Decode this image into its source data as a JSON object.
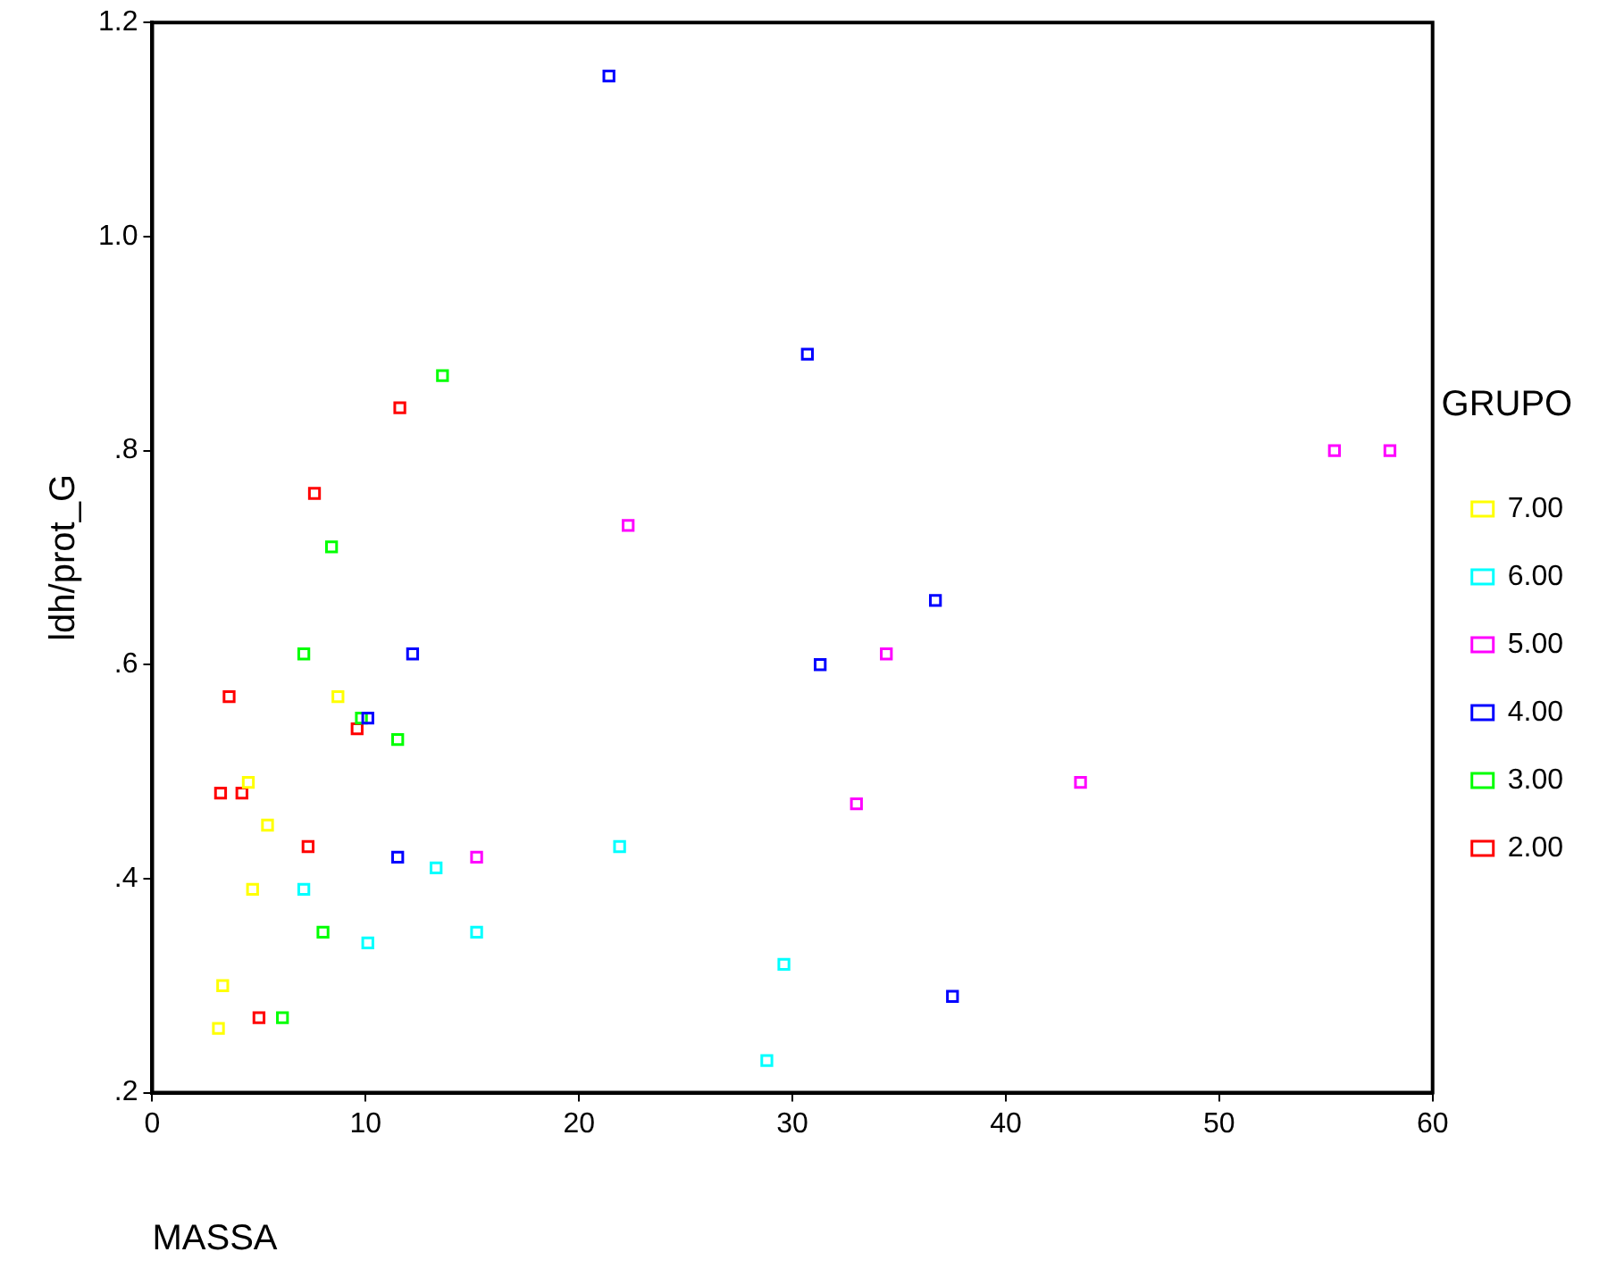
{
  "chart_data": {
    "type": "scatter",
    "xlabel": "MASSA",
    "ylabel": "ldh/prot_G",
    "legend_title": "GRUPO",
    "legend": "right",
    "marker": "square",
    "grid": false,
    "xlim": [
      0,
      60
    ],
    "xticks": [
      0,
      10,
      20,
      30,
      40,
      50,
      60
    ],
    "ylim": [
      0.2,
      1.2
    ],
    "yticks": [
      {
        "value": 0.2,
        "label": ".2"
      },
      {
        "value": 0.4,
        "label": ".4"
      },
      {
        "value": 0.6,
        "label": ".6"
      },
      {
        "value": 0.8,
        "label": ".8"
      },
      {
        "value": 1.0,
        "label": "1.0"
      },
      {
        "value": 1.2,
        "label": "1.2"
      }
    ],
    "series": [
      {
        "name": "7.00",
        "color": "#ffff00",
        "x": [
          8.7,
          4.5,
          5.4,
          4.7,
          3.3,
          3.1
        ],
        "values": [
          0.57,
          0.49,
          0.45,
          0.39,
          0.3,
          0.26
        ]
      },
      {
        "name": "6.00",
        "color": "#00ffff",
        "x": [
          13.3,
          7.1,
          10.1,
          15.2,
          21.9,
          29.6,
          28.8
        ],
        "values": [
          0.41,
          0.39,
          0.34,
          0.35,
          0.43,
          0.32,
          0.23
        ]
      },
      {
        "name": "5.00",
        "color": "#ff00ff",
        "x": [
          15.2,
          22.3,
          34.4,
          33.0,
          43.5,
          55.4,
          58.0
        ],
        "values": [
          0.42,
          0.73,
          0.61,
          0.47,
          0.49,
          0.8,
          0.8
        ]
      },
      {
        "name": "4.00",
        "color": "#0000ff",
        "x": [
          12.2,
          10.1,
          11.5,
          21.4,
          30.7,
          36.7,
          31.3,
          37.5
        ],
        "values": [
          0.61,
          0.55,
          0.42,
          1.15,
          0.89,
          0.66,
          0.6,
          0.29
        ]
      },
      {
        "name": "3.00",
        "color": "#00ff00",
        "x": [
          13.6,
          8.4,
          7.1,
          9.8,
          11.5,
          8.0,
          6.1
        ],
        "values": [
          0.87,
          0.71,
          0.61,
          0.55,
          0.53,
          0.35,
          0.27
        ]
      },
      {
        "name": "2.00",
        "color": "#ff0000",
        "x": [
          11.6,
          7.6,
          3.6,
          9.6,
          3.2,
          4.2,
          7.3,
          5.0
        ],
        "values": [
          0.84,
          0.76,
          0.57,
          0.54,
          0.48,
          0.48,
          0.43,
          0.27
        ]
      }
    ]
  }
}
